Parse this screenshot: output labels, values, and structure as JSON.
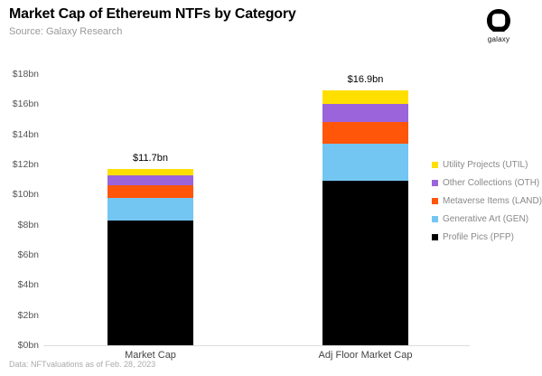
{
  "header": {
    "title": "Market Cap of Ethereum NTFs by Category",
    "subtitle": "Source: Galaxy Research",
    "logo_text": "galaxy"
  },
  "footer": {
    "note": "Data: NFTvaluations as of Feb. 28, 2023"
  },
  "icons": {
    "logo_icon": "galaxy-helmet-icon"
  },
  "colors": {
    "util_yellow": "#FFDF00",
    "oth_purple": "#9B64DA",
    "land_orange": "#FF560A",
    "gen_blue": "#74C6F2",
    "pfp_black": "#000000",
    "axis_text": "#555555",
    "legend_text": "#888888",
    "baseline": "#dddddd"
  },
  "chart_data": {
    "type": "bar",
    "stacked": true,
    "title": "Market Cap of Ethereum NTFs by Category",
    "categories": [
      "Market Cap",
      "Adj Floor Market Cap"
    ],
    "series": [
      {
        "name": "Profile Pics (PFP)",
        "color": "#000000",
        "values": [
          8.3,
          10.9
        ]
      },
      {
        "name": "Generative Art (GEN)",
        "color": "#74C6F2",
        "values": [
          1.5,
          2.5
        ]
      },
      {
        "name": "Metaverse Items (LAND)",
        "color": "#FF560A",
        "values": [
          0.8,
          1.4
        ]
      },
      {
        "name": "Other Collections (OTH)",
        "color": "#9B64DA",
        "values": [
          0.7,
          1.2
        ]
      },
      {
        "name": "Utility Projects (UTIL)",
        "color": "#FFDF00",
        "values": [
          0.4,
          0.9
        ]
      }
    ],
    "totals": [
      11.7,
      16.9
    ],
    "total_labels": [
      "$11.7bn",
      "$16.9bn"
    ],
    "y_axis": {
      "min": 0,
      "max": 18,
      "step": 2,
      "tick_suffix": "bn",
      "tick_prefix": "$"
    },
    "legend_top_to_bottom": [
      "Utility Projects (UTIL)",
      "Other Collections (OTH)",
      "Metaverse Items (LAND)",
      "Generative Art (GEN)",
      "Profile Pics (PFP)"
    ],
    "legend_position": "right",
    "gridlines": false
  }
}
